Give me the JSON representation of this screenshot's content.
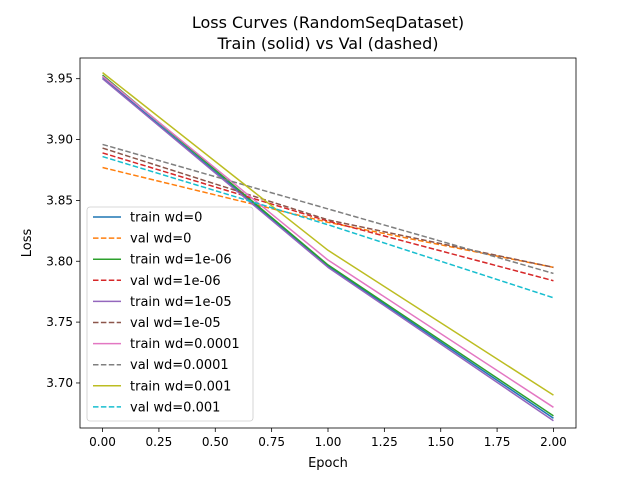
{
  "chart_data": {
    "type": "line",
    "title": [
      "Loss Curves (RandomSeqDataset)",
      "Train (solid) vs Val (dashed)"
    ],
    "xlabel": "Epoch",
    "ylabel": "Loss",
    "xlim": [
      -0.1,
      2.1
    ],
    "ylim": [
      3.663,
      3.967
    ],
    "xticks": [
      0.0,
      0.25,
      0.5,
      0.75,
      1.0,
      1.25,
      1.5,
      1.75,
      2.0
    ],
    "xtick_labels": [
      "0.00",
      "0.25",
      "0.50",
      "0.75",
      "1.00",
      "1.25",
      "1.50",
      "1.75",
      "2.00"
    ],
    "yticks": [
      3.7,
      3.75,
      3.8,
      3.85,
      3.9,
      3.95
    ],
    "ytick_labels": [
      "3.70",
      "3.75",
      "3.80",
      "3.85",
      "3.90",
      "3.95"
    ],
    "grid": false,
    "legend_position": "lower-left",
    "x": [
      0,
      1,
      2
    ],
    "series": [
      {
        "name": "train wd=0",
        "color": "#1f77b4",
        "style": "solid",
        "values": [
          3.951,
          3.796,
          3.671
        ]
      },
      {
        "name": "val wd=0",
        "color": "#ff7f0e",
        "style": "dashed",
        "values": [
          3.877,
          3.832,
          3.795
        ]
      },
      {
        "name": "train wd=1e-06",
        "color": "#2ca02c",
        "style": "solid",
        "values": [
          3.953,
          3.797,
          3.673
        ]
      },
      {
        "name": "val wd=1e-06",
        "color": "#d62728",
        "style": "dashed",
        "values": [
          3.889,
          3.833,
          3.784
        ]
      },
      {
        "name": "train wd=1e-05",
        "color": "#9467bd",
        "style": "solid",
        "values": [
          3.95,
          3.795,
          3.669
        ]
      },
      {
        "name": "val wd=1e-05",
        "color": "#8c564b",
        "style": "dashed",
        "values": [
          3.893,
          3.834,
          3.795
        ]
      },
      {
        "name": "train wd=0.0001",
        "color": "#e377c2",
        "style": "solid",
        "values": [
          3.952,
          3.801,
          3.68
        ]
      },
      {
        "name": "val wd=0.0001",
        "color": "#7f7f7f",
        "style": "dashed",
        "values": [
          3.896,
          3.843,
          3.79
        ]
      },
      {
        "name": "train wd=0.001",
        "color": "#bcbd22",
        "style": "solid",
        "values": [
          3.955,
          3.809,
          3.69
        ]
      },
      {
        "name": "val wd=0.001",
        "color": "#17becf",
        "style": "dashed",
        "values": [
          3.886,
          3.83,
          3.77
        ]
      }
    ]
  }
}
